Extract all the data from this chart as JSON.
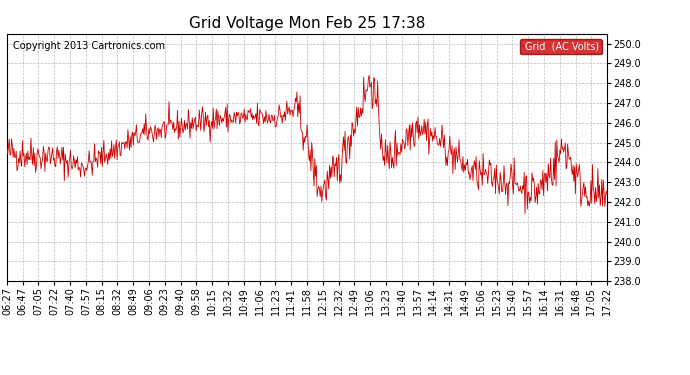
{
  "title": "Grid Voltage Mon Feb 25 17:38",
  "copyright": "Copyright 2013 Cartronics.com",
  "legend_label": "Grid  (AC Volts)",
  "line_color": "#cc0000",
  "legend_bg": "#cc0000",
  "legend_text_color": "#ffffff",
  "background_color": "#ffffff",
  "plot_bg_color": "#ffffff",
  "grid_color": "#bbbbbb",
  "ylim": [
    238.0,
    250.5
  ],
  "yticks": [
    238.0,
    239.0,
    240.0,
    241.0,
    242.0,
    243.0,
    244.0,
    245.0,
    246.0,
    247.0,
    248.0,
    249.0,
    250.0
  ],
  "xtick_labels": [
    "06:27",
    "06:47",
    "07:05",
    "07:22",
    "07:40",
    "07:57",
    "08:15",
    "08:32",
    "08:49",
    "09:06",
    "09:23",
    "09:40",
    "09:58",
    "10:15",
    "10:32",
    "10:49",
    "11:06",
    "11:23",
    "11:41",
    "11:58",
    "12:15",
    "12:32",
    "12:49",
    "13:06",
    "13:23",
    "13:40",
    "13:57",
    "14:14",
    "14:31",
    "14:49",
    "15:06",
    "15:23",
    "15:40",
    "15:57",
    "16:14",
    "16:31",
    "16:48",
    "17:05",
    "17:22"
  ],
  "title_fontsize": 11,
  "tick_fontsize": 7,
  "copyright_fontsize": 7
}
